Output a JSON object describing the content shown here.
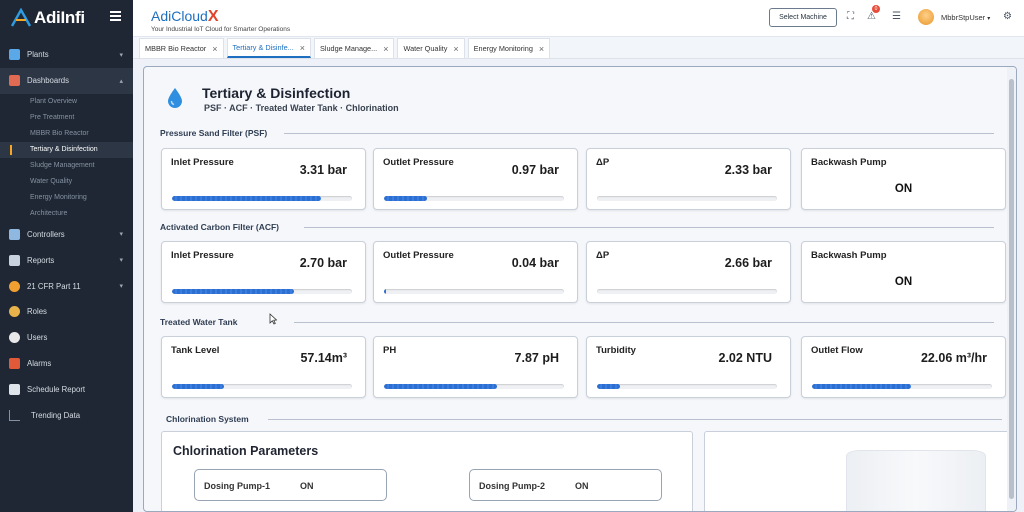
{
  "sidebar": {
    "brand": "AdiInfi",
    "items": [
      {
        "label": "Plants",
        "expandable": true
      },
      {
        "label": "Dashboards",
        "expandable": true,
        "expanded": true
      },
      {
        "label": "Controllers",
        "expandable": true
      },
      {
        "label": "Reports",
        "expandable": true
      },
      {
        "label": "21 CFR Part 11",
        "expandable": true
      },
      {
        "label": "Roles"
      },
      {
        "label": "Users"
      },
      {
        "label": "Alarms"
      },
      {
        "label": "Schedule Report"
      },
      {
        "label": "Trending Data"
      }
    ],
    "dashboards_sub": [
      "Plant Overview",
      "Pre Treatment",
      "MBBR Bio Reactor",
      "Tertiary & Disinfection",
      "Sludge Management",
      "Water Quality",
      "Energy Monitoring",
      "Architecture"
    ]
  },
  "header": {
    "app_name": "AdiCloud",
    "app_name_x": "X",
    "tagline": "Your Industrial IoT Cloud for Smarter Operations",
    "select_machine": "Select Machine",
    "notification_count": "0",
    "user": "MbbrStpUser"
  },
  "tabs": [
    {
      "label": "MBBR Bio Reactor",
      "active": false
    },
    {
      "label": "Tertiary & Disinfe...",
      "active": true
    },
    {
      "label": "Sludge Manage...",
      "active": false
    },
    {
      "label": "Water Quality",
      "active": false
    },
    {
      "label": "Energy Monitoring",
      "active": false
    }
  ],
  "page": {
    "title": "Tertiary & Disinfection",
    "subtitle": "PSF · ACF · Treated Water Tank · Chlorination"
  },
  "psf": {
    "section": "Pressure Sand Filter (PSF)",
    "inlet": {
      "label": "Inlet Pressure",
      "value": "3.31 bar",
      "level": 0.83
    },
    "outlet": {
      "label": "Outlet Pressure",
      "value": "0.97 bar",
      "level": 0.24
    },
    "dp": {
      "label": "ΔP",
      "value": "2.33 bar",
      "level": 0.0
    },
    "pump": {
      "label": "Backwash Pump",
      "state": "ON"
    }
  },
  "acf": {
    "section": "Activated Carbon Filter (ACF)",
    "inlet": {
      "label": "Inlet Pressure",
      "value": "2.70 bar",
      "level": 0.68
    },
    "outlet": {
      "label": "Outlet Pressure",
      "value": "0.04 bar",
      "level": 0.01
    },
    "dp": {
      "label": "ΔP",
      "value": "2.66 bar",
      "level": 0.0
    },
    "pump": {
      "label": "Backwash Pump",
      "state": "ON"
    }
  },
  "tank": {
    "section": "Treated Water Tank",
    "level": {
      "label": "Tank Level",
      "value": "57.14m³",
      "level": 0.29
    },
    "ph": {
      "label": "PH",
      "value": "7.87 pH",
      "level": 0.63
    },
    "turbidity": {
      "label": "Turbidity",
      "value": "2.02 NTU",
      "level": 0.13
    },
    "flow": {
      "label": "Outlet Flow",
      "value": "22.06 m³/hr",
      "level": 0.55
    }
  },
  "chlorination": {
    "section": "Chlorination System",
    "panel_title": "Chlorination Parameters",
    "pump1": {
      "label": "Dosing Pump-1",
      "state": "ON"
    },
    "pump2": {
      "label": "Dosing Pump-2",
      "state": "ON"
    }
  },
  "colors": {
    "accent": "#1e6fc0",
    "sidebar": "#1e2733",
    "bar": "#2d6ed1",
    "logo_x": "#e0442b"
  },
  "icons": [
    "hamburger-icon",
    "fullscreen-icon",
    "alert-icon",
    "router-icon",
    "settings-icon",
    "water-drop-icon"
  ]
}
